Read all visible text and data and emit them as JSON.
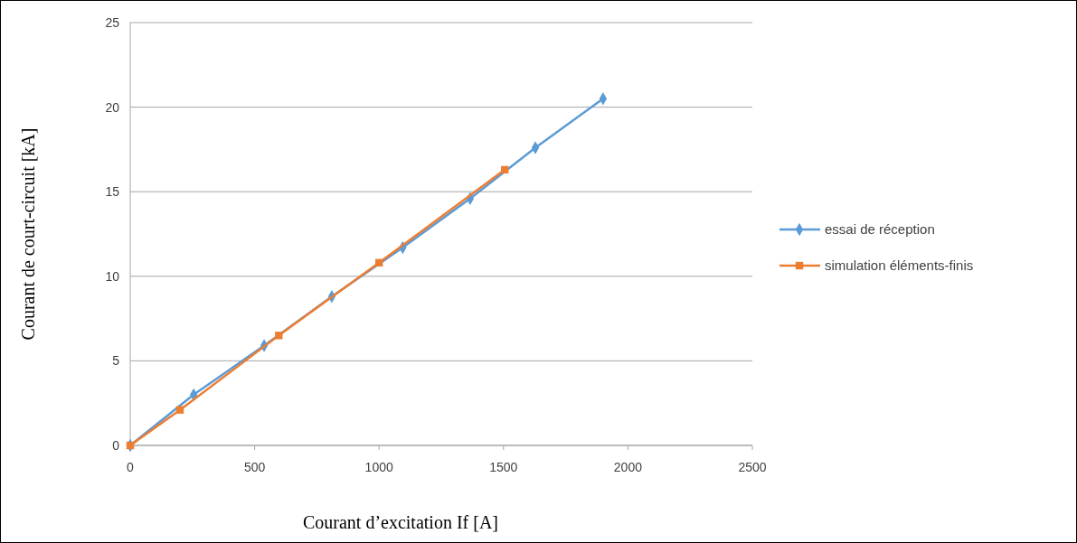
{
  "chart_data": {
    "type": "line",
    "xlabel": "Courant d’excitation If [A]",
    "ylabel": "Courant de court-circuit [kA]",
    "xlim": [
      0,
      2500
    ],
    "xticks": [
      0,
      500,
      1000,
      1500,
      2000,
      2500
    ],
    "ylim": [
      0,
      25
    ],
    "yticks": [
      0,
      5,
      10,
      15,
      20,
      25
    ],
    "grid": "y",
    "legend": "right",
    "series": [
      {
        "name": "essai de réception",
        "color": "#5b9bd5",
        "marker": "diamond",
        "x": [
          0,
          255,
          538,
          810,
          1095,
          1366,
          1628,
          1900
        ],
        "values": [
          0,
          3.0,
          5.9,
          8.8,
          11.7,
          14.6,
          17.6,
          20.5
        ]
      },
      {
        "name": "simulation éléments-finis",
        "color": "#ed7d31",
        "marker": "square",
        "x": [
          0,
          200,
          597,
          1000,
          1505
        ],
        "values": [
          0,
          2.1,
          6.5,
          10.8,
          16.3
        ]
      }
    ]
  }
}
